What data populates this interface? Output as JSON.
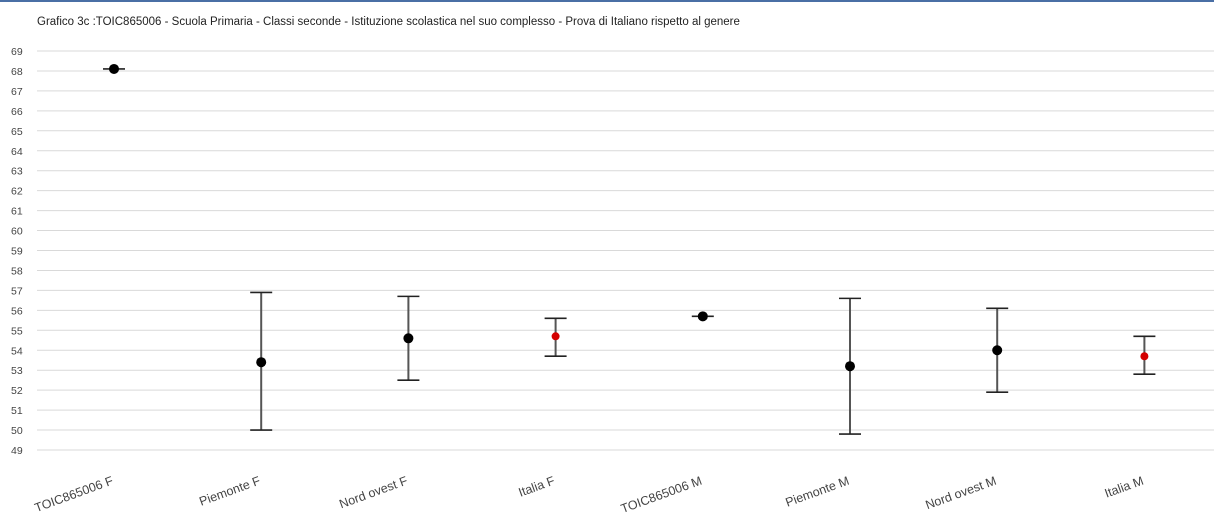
{
  "chart_data": {
    "type": "scatter",
    "title": "Grafico 3c :TOIC865006 - Scuola Primaria - Classi seconde - Istituzione scolastica nel suo complesso - Prova di Italiano rispetto al genere",
    "xlabel": "",
    "ylabel": "",
    "ylim": [
      49,
      69
    ],
    "yticks": [
      49,
      50,
      51,
      52,
      53,
      54,
      55,
      56,
      57,
      58,
      59,
      60,
      61,
      62,
      63,
      64,
      65,
      66,
      67,
      68,
      69
    ],
    "grid": true,
    "categories": [
      "TOIC865006 F",
      "Piemonte F",
      "Nord ovest F",
      "Italia F",
      "TOIC865006 M",
      "Piemonte M",
      "Nord ovest M",
      "Italia M"
    ],
    "values": [
      68.1,
      53.4,
      54.6,
      54.7,
      55.7,
      53.2,
      54.0,
      53.7
    ],
    "lower": [
      68.1,
      50.0,
      52.5,
      53.7,
      55.7,
      49.8,
      51.9,
      52.8
    ],
    "upper": [
      68.1,
      56.9,
      56.7,
      55.6,
      55.7,
      56.6,
      56.1,
      54.7
    ],
    "point_colors": [
      "#000000",
      "#000000",
      "#000000",
      "#d40000",
      "#000000",
      "#000000",
      "#000000",
      "#d40000"
    ],
    "error_bar_color": "#555555",
    "grid_color": "#d9d9d9"
  }
}
